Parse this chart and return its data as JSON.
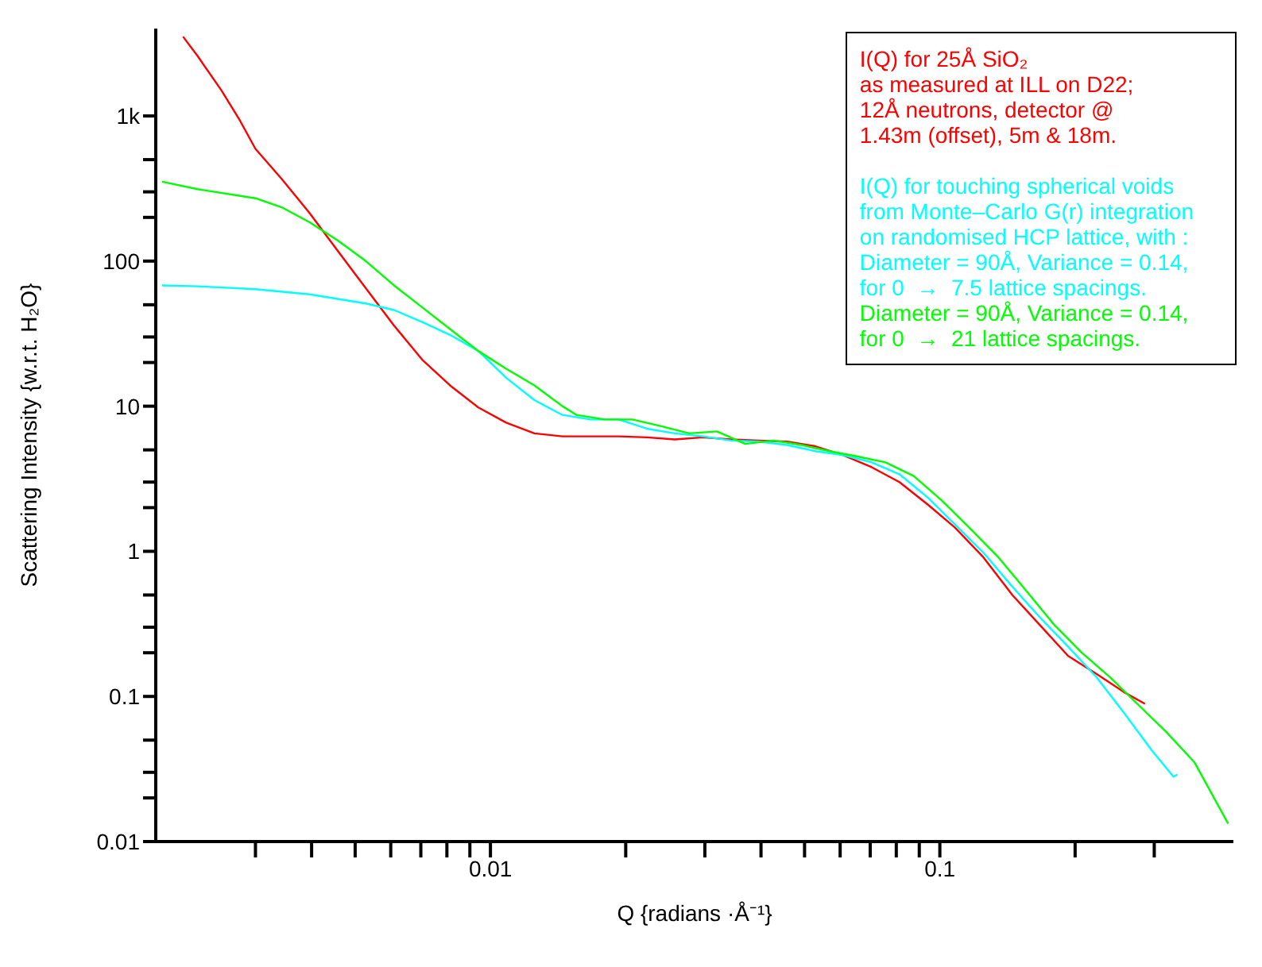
{
  "chart_data": {
    "type": "line",
    "xlabel": "Q {radians ·Å⁻¹}",
    "ylabel": "Scattering Intensity {w.r.t. H₂O}",
    "log": "xy",
    "legend": "top right",
    "grid": false,
    "marker": "none",
    "line_style": "solid",
    "xlim": [
      0.0018,
      0.45
    ],
    "ylim": [
      0.01,
      4000
    ],
    "xticks": [
      {
        "value": 0.003,
        "label": null
      },
      {
        "value": 0.004,
        "label": null
      },
      {
        "value": 0.005,
        "label": null
      },
      {
        "value": 0.006,
        "label": null
      },
      {
        "value": 0.007,
        "label": null
      },
      {
        "value": 0.008,
        "label": null
      },
      {
        "value": 0.009,
        "label": null
      },
      0.01,
      {
        "value": 0.02,
        "label": null
      },
      {
        "value": 0.03,
        "label": null
      },
      {
        "value": 0.04,
        "label": null
      },
      {
        "value": 0.05,
        "label": null
      },
      {
        "value": 0.06,
        "label": null
      },
      {
        "value": 0.07,
        "label": null
      },
      {
        "value": 0.08,
        "label": null
      },
      {
        "value": 0.09,
        "label": null
      },
      0.1,
      {
        "value": 0.2,
        "label": null
      },
      {
        "value": 0.3,
        "label": null
      }
    ],
    "yticks": [
      0.01,
      {
        "value": 0.02,
        "label": null
      },
      {
        "value": 0.03,
        "label": null
      },
      {
        "value": 0.05,
        "label": null
      },
      0.1,
      {
        "value": 0.2,
        "label": null
      },
      {
        "value": 0.3,
        "label": null
      },
      {
        "value": 0.5,
        "label": null
      },
      1,
      {
        "value": 2,
        "label": null
      },
      {
        "value": 3,
        "label": null
      },
      {
        "value": 5,
        "label": null
      },
      10,
      {
        "value": 20,
        "label": null
      },
      {
        "value": 30,
        "label": null
      },
      {
        "value": 50,
        "label": null
      },
      100,
      {
        "value": 200,
        "label": null
      },
      {
        "value": 300,
        "label": null
      },
      {
        "value": 500,
        "label": null
      },
      {
        "value": 1000,
        "label": "1k"
      }
    ],
    "series": [
      {
        "name": "I(Q) for 25Å SiO₂\nas measured at ILL on D22;\n12Å neutrons, detector @\n1.43m (offset), 5m & 18m.",
        "color": "#ff0000",
        "x": [
          0.00207,
          0.00223,
          0.00252,
          0.00277,
          0.003,
          0.00343,
          0.00396,
          0.00457,
          0.00528,
          0.0061,
          0.00705,
          0.00813,
          0.0094,
          0.01084,
          0.01253,
          0.01446,
          0.0167,
          0.01928,
          0.0223,
          0.0257,
          0.0297,
          0.0343,
          0.0396,
          0.0457,
          0.0528,
          0.061,
          0.0705,
          0.0813,
          0.094,
          0.108,
          0.125,
          0.145,
          0.167,
          0.193,
          0.223,
          0.257,
          0.286
        ],
        "values": [
          3520,
          2590,
          1500,
          931,
          593,
          369,
          214,
          118,
          65,
          36,
          20.9,
          13.9,
          9.8,
          7.7,
          6.5,
          6.2,
          6.2,
          6.2,
          6.1,
          5.9,
          6.1,
          5.9,
          5.8,
          5.7,
          5.3,
          4.6,
          3.8,
          3.0,
          2.1,
          1.46,
          0.91,
          0.5,
          0.31,
          0.19,
          0.143,
          0.107,
          0.089
        ]
      },
      {
        "name": "I(Q) for touching spherical voids\nfrom Monte–Carlo G(r) integration\non randomised HCP lattice, with :\nDiameter = 90Å, Variance = 0.14,\nfor 0  →  7.5 lattice spacings.",
        "color": "#00ffff",
        "x": [
          0.00186,
          0.00223,
          0.003,
          0.00396,
          0.00528,
          0.0061,
          0.00705,
          0.00813,
          0.0094,
          0.01084,
          0.01253,
          0.01446,
          0.0167,
          0.01928,
          0.0223,
          0.0257,
          0.0297,
          0.0343,
          0.0396,
          0.0457,
          0.0528,
          0.061,
          0.0705,
          0.0813,
          0.094,
          0.108,
          0.125,
          0.145,
          0.167,
          0.193,
          0.223,
          0.257,
          0.297,
          0.331,
          0.338
        ],
        "values": [
          68,
          67,
          64,
          59,
          51,
          46,
          38,
          31,
          24,
          15.7,
          11.0,
          8.7,
          8.1,
          8.1,
          7.0,
          6.5,
          6.2,
          5.8,
          5.7,
          5.4,
          4.9,
          4.6,
          4.1,
          3.4,
          2.35,
          1.53,
          0.98,
          0.57,
          0.35,
          0.22,
          0.136,
          0.077,
          0.042,
          0.028,
          0.029
        ]
      },
      {
        "name": "Diameter = 90Å, Variance = 0.14,\nfor 0  →  21 lattice spacings.",
        "color": "#00ff00",
        "x": [
          0.00186,
          0.00223,
          0.003,
          0.00343,
          0.00396,
          0.00457,
          0.00528,
          0.0061,
          0.00705,
          0.00813,
          0.0094,
          0.01084,
          0.01253,
          0.01446,
          0.01555,
          0.01795,
          0.0207,
          0.0239,
          0.0277,
          0.0319,
          0.0369,
          0.0426,
          0.0492,
          0.0568,
          0.0656,
          0.0757,
          0.0875,
          0.101,
          0.117,
          0.135,
          0.156,
          0.18,
          0.207,
          0.239,
          0.277,
          0.319,
          0.369,
          0.438
        ],
        "values": [
          352,
          313,
          271,
          235,
          185,
          139,
          100,
          68,
          48,
          34,
          24,
          18.1,
          13.9,
          10,
          8.7,
          8.1,
          8.1,
          7.3,
          6.5,
          6.7,
          5.5,
          5.8,
          5.4,
          4.9,
          4.5,
          4.1,
          3.3,
          2.24,
          1.43,
          0.91,
          0.53,
          0.31,
          0.2,
          0.136,
          0.087,
          0.057,
          0.035,
          0.0133
        ]
      }
    ]
  }
}
